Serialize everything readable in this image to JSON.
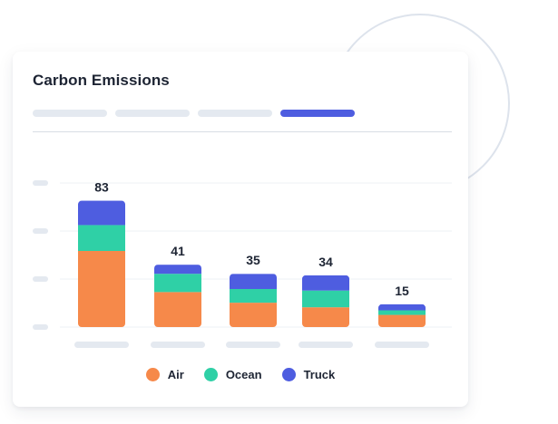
{
  "card": {
    "title": "Carbon Emissions",
    "tabs": [
      {
        "active": false
      },
      {
        "active": false
      },
      {
        "active": false
      },
      {
        "active": true
      }
    ]
  },
  "colors": {
    "Air": "#f6894a",
    "Ocean": "#2fd0a6",
    "Truck": "#4e5de0",
    "accent": "#4e5de0",
    "placeholder": "#e4e9f0"
  },
  "chart_data": {
    "type": "bar",
    "stacked": true,
    "title": "",
    "xlabel": "",
    "ylabel": "",
    "categories": [
      "",
      "",
      "",
      "",
      ""
    ],
    "totals": [
      83,
      41,
      35,
      34,
      15
    ],
    "series": [
      {
        "name": "Air",
        "values": [
          50,
          23,
          16,
          13,
          8
        ]
      },
      {
        "name": "Ocean",
        "values": [
          17,
          12,
          9,
          11,
          3
        ]
      },
      {
        "name": "Truck",
        "values": [
          16,
          6,
          10,
          10,
          4
        ]
      }
    ],
    "ylim": [
      0,
      100
    ],
    "grid": true,
    "legend": "bottom-center"
  }
}
